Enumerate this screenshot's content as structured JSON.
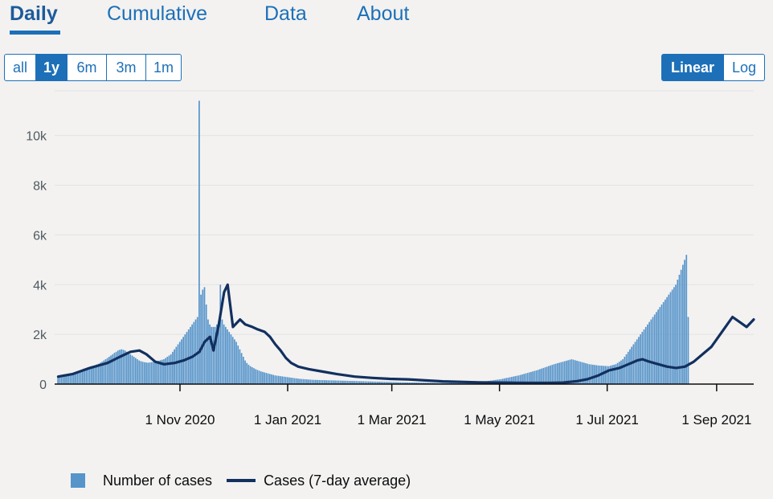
{
  "tabs": [
    {
      "label": "Daily",
      "active": true
    },
    {
      "label": "Cumulative",
      "active": false
    },
    {
      "label": "Data",
      "active": false
    },
    {
      "label": "About",
      "active": false
    }
  ],
  "range_buttons": [
    {
      "label": "all",
      "active": false
    },
    {
      "label": "1y",
      "active": true
    },
    {
      "label": "6m",
      "active": false
    },
    {
      "label": "3m",
      "active": false
    },
    {
      "label": "1m",
      "active": false
    }
  ],
  "scale_buttons": [
    {
      "label": "Linear",
      "active": true
    },
    {
      "label": "Log",
      "active": false
    }
  ],
  "legend": {
    "bars": "Number of cases",
    "line": "Cases (7-day average)"
  },
  "colors": {
    "bar": "#5694ca",
    "line": "#12305f",
    "accent": "#1d70b8",
    "grid": "#e3e3e3"
  },
  "chart_data": {
    "type": "bar",
    "title": "",
    "xlabel": "",
    "ylabel": "",
    "ylim": [
      0,
      11800
    ],
    "yticks": [
      0,
      2000,
      4000,
      6000,
      8000,
      10000
    ],
    "ytick_labels": [
      "0",
      "2k",
      "4k",
      "6k",
      "8k",
      "10k"
    ],
    "xticks": [
      {
        "day": 31,
        "label": "1 Nov 2020"
      },
      {
        "day": 92,
        "label": "1 Jan 2021"
      },
      {
        "day": 151,
        "label": "1 Mar 2021"
      },
      {
        "day": 212,
        "label": "1 May 2021"
      },
      {
        "day": 273,
        "label": "1 Jul 2021"
      },
      {
        "day": 335,
        "label": "1 Sep 2021"
      }
    ],
    "x_domain": [
      -40,
      356
    ],
    "x_start_day": -38,
    "x_unit": "days since 1 Oct 2020",
    "series": [
      {
        "name": "Number of cases",
        "kind": "bar",
        "values": [
          300,
          310,
          320,
          330,
          350,
          360,
          380,
          400,
          420,
          440,
          470,
          500,
          530,
          560,
          600,
          630,
          650,
          680,
          700,
          720,
          740,
          760,
          790,
          820,
          860,
          900,
          950,
          1000,
          1050,
          1100,
          1150,
          1200,
          1260,
          1300,
          1350,
          1380,
          1400,
          1380,
          1350,
          1300,
          1250,
          1200,
          1150,
          1100,
          1050,
          1000,
          950,
          920,
          900,
          880,
          870,
          860,
          870,
          880,
          890,
          900,
          920,
          940,
          960,
          980,
          1000,
          1050,
          1100,
          1150,
          1200,
          1300,
          1400,
          1500,
          1600,
          1700,
          1800,
          1900,
          2000,
          2100,
          2200,
          2300,
          2400,
          2500,
          2600,
          2700,
          11400,
          3600,
          3800,
          3900,
          3200,
          2600,
          2400,
          2300,
          2300,
          2300,
          2400,
          2500,
          4000,
          2600,
          2400,
          2300,
          2200,
          2100,
          2000,
          1900,
          1800,
          1700,
          1550,
          1400,
          1250,
          1100,
          950,
          850,
          780,
          720,
          680,
          640,
          600,
          570,
          540,
          510,
          490,
          470,
          450,
          430,
          410,
          390,
          370,
          350,
          340,
          330,
          320,
          310,
          300,
          290,
          280,
          270,
          260,
          250,
          240,
          230,
          220,
          210,
          205,
          200,
          195,
          190,
          185,
          180,
          175,
          170,
          168,
          166,
          164,
          162,
          160,
          158,
          156,
          154,
          152,
          150,
          148,
          146,
          144,
          142,
          140,
          138,
          136,
          134,
          132,
          130,
          128,
          126,
          124,
          122,
          120,
          118,
          116,
          114,
          112,
          110,
          108,
          106,
          104,
          102,
          100,
          98,
          96,
          94,
          92,
          90,
          88,
          86,
          84,
          82,
          80,
          78,
          76,
          74,
          72,
          70,
          69,
          68,
          67,
          66,
          65,
          64,
          63,
          62,
          61,
          60,
          59,
          58,
          57,
          56,
          55,
          54,
          53,
          52,
          51,
          50,
          50,
          50,
          50,
          50,
          50,
          50,
          50,
          50,
          50,
          50,
          50,
          50,
          50,
          50,
          50,
          50,
          55,
          60,
          65,
          70,
          75,
          80,
          85,
          90,
          95,
          100,
          110,
          120,
          130,
          140,
          150,
          160,
          170,
          180,
          190,
          200,
          215,
          230,
          245,
          260,
          275,
          290,
          305,
          320,
          335,
          350,
          370,
          390,
          410,
          430,
          450,
          470,
          490,
          510,
          530,
          550,
          575,
          600,
          625,
          650,
          675,
          700,
          725,
          750,
          775,
          800,
          820,
          840,
          860,
          880,
          900,
          920,
          940,
          960,
          980,
          1000,
          980,
          960,
          940,
          920,
          900,
          880,
          860,
          840,
          820,
          800,
          790,
          780,
          770,
          760,
          750,
          745,
          740,
          735,
          730,
          725,
          720,
          740,
          760,
          780,
          800,
          850,
          900,
          950,
          1000,
          1100,
          1200,
          1300,
          1400,
          1500,
          1600,
          1700,
          1800,
          1900,
          2000,
          2100,
          2200,
          2300,
          2400,
          2500,
          2600,
          2700,
          2800,
          2900,
          3000,
          3100,
          3200,
          3300,
          3400,
          3500,
          3600,
          3700,
          3800,
          3900,
          4000,
          4200,
          4400,
          4600,
          4800,
          5000,
          5200,
          2700
        ]
      },
      {
        "name": "Cases (7-day average)",
        "kind": "line",
        "points": [
          [
            -38,
            300
          ],
          [
            -30,
            400
          ],
          [
            -20,
            650
          ],
          [
            -10,
            850
          ],
          [
            -3,
            1100
          ],
          [
            3,
            1300
          ],
          [
            8,
            1350
          ],
          [
            12,
            1200
          ],
          [
            17,
            900
          ],
          [
            22,
            800
          ],
          [
            28,
            850
          ],
          [
            33,
            950
          ],
          [
            38,
            1100
          ],
          [
            42,
            1300
          ],
          [
            45,
            1700
          ],
          [
            48,
            1900
          ],
          [
            50,
            1350
          ],
          [
            53,
            2400
          ],
          [
            56,
            3700
          ],
          [
            58,
            4000
          ],
          [
            61,
            2300
          ],
          [
            65,
            2600
          ],
          [
            68,
            2400
          ],
          [
            72,
            2300
          ],
          [
            75,
            2200
          ],
          [
            79,
            2100
          ],
          [
            82,
            1900
          ],
          [
            85,
            1600
          ],
          [
            88,
            1350
          ],
          [
            91,
            1050
          ],
          [
            94,
            850
          ],
          [
            98,
            700
          ],
          [
            104,
            600
          ],
          [
            112,
            500
          ],
          [
            120,
            400
          ],
          [
            130,
            300
          ],
          [
            140,
            250
          ],
          [
            150,
            210
          ],
          [
            160,
            190
          ],
          [
            170,
            150
          ],
          [
            180,
            110
          ],
          [
            190,
            90
          ],
          [
            200,
            70
          ],
          [
            210,
            60
          ],
          [
            220,
            55
          ],
          [
            230,
            50
          ],
          [
            240,
            50
          ],
          [
            248,
            60
          ],
          [
            256,
            120
          ],
          [
            262,
            200
          ],
          [
            268,
            350
          ],
          [
            274,
            550
          ],
          [
            280,
            650
          ],
          [
            285,
            800
          ],
          [
            290,
            950
          ],
          [
            293,
            1000
          ],
          [
            297,
            900
          ],
          [
            302,
            800
          ],
          [
            307,
            700
          ],
          [
            312,
            650
          ],
          [
            317,
            700
          ],
          [
            322,
            900
          ],
          [
            327,
            1200
          ],
          [
            332,
            1500
          ],
          [
            336,
            1900
          ],
          [
            340,
            2300
          ],
          [
            344,
            2700
          ],
          [
            348,
            2500
          ],
          [
            352,
            2300
          ],
          [
            356,
            2600
          ]
        ]
      }
    ]
  }
}
